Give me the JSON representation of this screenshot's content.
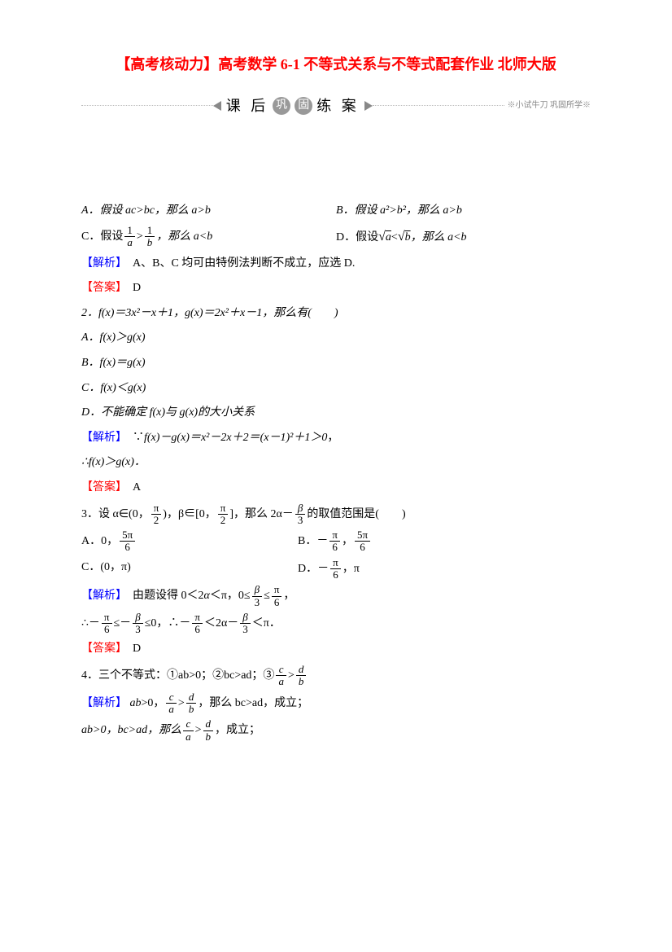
{
  "title": "【高考核动力】高考数学 6-1 不等式关系与不等式配套作业 北师大版",
  "banner": {
    "prefix": "课 后",
    "circles": [
      "巩",
      "固"
    ],
    "suffix": "练 案",
    "tail": "※小试牛刀 巩固所学※"
  },
  "q1": {
    "A": "A．假设 ac>bc，那么 a>b",
    "B": "B．假设 a²>b²，那么 a>b",
    "C_pre": "C．假设",
    "C_frac1_num": "1",
    "C_frac1_den": "a",
    "C_gt": ">",
    "C_frac2_num": "1",
    "C_frac2_den": "b",
    "C_post": "，那么 a<b",
    "D_pre": "D．假设",
    "D_sqrt": "√a<√b",
    "D_post": "，那么 a<b",
    "jiexi": "【解析】　A、B、C 均可由特例法判断不成立，应选 D.",
    "daan": "【答案】　D"
  },
  "q2": {
    "stem": "2．f(x)＝3x²－x＋1，g(x)＝2x²＋x－1，那么有(　　)",
    "A": "A．f(x)＞g(x)",
    "B": "B．f(x)＝g(x)",
    "C": "C．f(x)＜g(x)",
    "D": "D．不能确定 f(x)与 g(x)的大小关系",
    "jiexi": "【解析】　∵f(x)－g(x)＝x²－2x＋2＝(x－1)²＋1＞0，",
    "jiexi2": "∴f(x)＞g(x)．",
    "daan": "【答案】　A"
  },
  "q3": {
    "stem_pre": "3．设 α∈(0，",
    "pi2_num": "π",
    "pi2_den": "2",
    "stem_mid": ")，β∈[0，",
    "stem_mid2": "]，那么 2α－",
    "b3_num": "β",
    "b3_den": "3",
    "stem_post": "的取值范围是(　　)",
    "A_pre": "A．0，",
    "A_num": "5π",
    "A_den": "6",
    "B_pre": "B．－",
    "B_num1": "π",
    "B_den1": "6",
    "B_mid": "，",
    "B_num2": "5π",
    "B_den2": "6",
    "C": "C．(0，π)",
    "D_pre": "D．－",
    "D_num": "π",
    "D_den": "6",
    "D_post": "，π",
    "jx_pre": "【解析】　由题设得 0＜2α＜π，0≤",
    "jx_num1": "β",
    "jx_den1": "3",
    "jx_mid": "≤",
    "jx_num2": "π",
    "jx_den2": "6",
    "jx_post": "，",
    "jx2_pre": "∴－",
    "jx2_mid1": "≤－",
    "jx2_mid2": "≤0，∴－",
    "jx2_mid3": "＜2α－",
    "jx2_post": "＜π．",
    "daan": "【答案】　D"
  },
  "q4": {
    "stem_pre": "4．三个不等式：①ab>0；②bc>ad；③",
    "ca_num": "c",
    "ca_den": "a",
    "gt": ">",
    "db_num": "d",
    "db_den": "b",
    "jx1_pre": "【解析】 ab>0，",
    "jx1_mid": "，那么 bc>ad，成立；",
    "jx2_pre": "ab>0，bc>ad，那么",
    "jx2_post": "，成立；"
  }
}
